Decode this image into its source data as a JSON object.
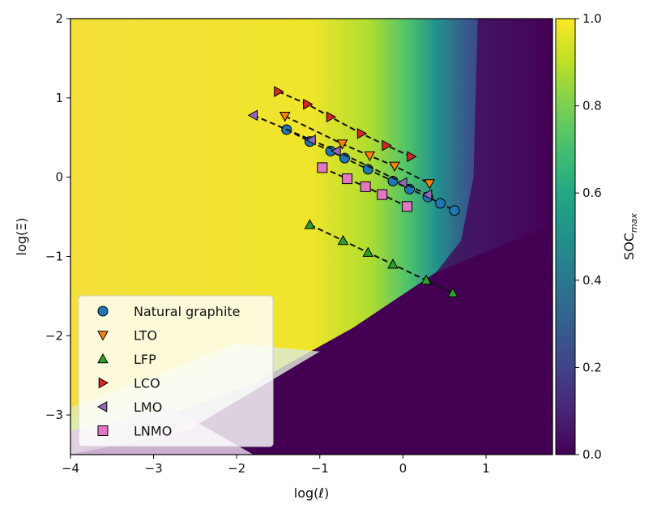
{
  "chart_data": {
    "type": "scatter",
    "background": "heatmap",
    "xlabel": "log(ℓ)",
    "ylabel": "log(Ξ)",
    "xlim": [
      -4,
      1.8
    ],
    "ylim": [
      -3.5,
      2
    ],
    "x_ticks": [
      -4,
      -3,
      -2,
      -1,
      0,
      1
    ],
    "y_ticks": [
      -3,
      -2,
      -1,
      0,
      1,
      2
    ],
    "x_tick_labels": [
      "−4",
      "−3",
      "−2",
      "−1",
      "0",
      "1"
    ],
    "y_tick_labels": [
      "−3",
      "−2",
      "−1",
      "0",
      "1",
      "2"
    ],
    "colorbar": {
      "label_main": "SOC",
      "label_sub": "max",
      "range": [
        0,
        1
      ],
      "ticks": [
        0,
        0.2,
        0.4,
        0.6,
        0.8,
        1.0
      ],
      "tick_labels": [
        "0.0",
        "0.2",
        "0.4",
        "0.6",
        "0.8",
        "1.0"
      ],
      "colormap": "viridis"
    },
    "legend_position": "lower-left",
    "series": [
      {
        "name": "Natural graphite",
        "marker": "circle",
        "color": "#1f77b4",
        "x": [
          -1.4,
          -1.12,
          -0.87,
          -0.7,
          -0.42,
          -0.12,
          0.08,
          0.3,
          0.45,
          0.62
        ],
        "y": [
          0.6,
          0.45,
          0.33,
          0.24,
          0.1,
          -0.05,
          -0.15,
          -0.25,
          -0.33,
          -0.42
        ]
      },
      {
        "name": "LTO",
        "marker": "triangle-down",
        "color": "#ff7f0e",
        "x": [
          -1.42,
          -0.73,
          -0.4,
          -0.1,
          0.32
        ],
        "y": [
          0.77,
          0.42,
          0.27,
          0.14,
          -0.08
        ]
      },
      {
        "name": "LFP",
        "marker": "triangle-up",
        "color": "#2ca02c",
        "x": [
          -1.12,
          -0.72,
          -0.42,
          -0.12,
          0.28,
          0.6
        ],
        "y": [
          -0.6,
          -0.8,
          -0.95,
          -1.1,
          -1.3,
          -1.46
        ]
      },
      {
        "name": "LCO",
        "marker": "triangle-right",
        "color": "#d62728",
        "x": [
          -1.5,
          -1.15,
          -0.87,
          -0.5,
          -0.2,
          0.1
        ],
        "y": [
          1.08,
          0.92,
          0.76,
          0.55,
          0.4,
          0.26
        ]
      },
      {
        "name": "LMO",
        "marker": "triangle-left",
        "color": "#9467bd",
        "x": [
          -1.8,
          -1.1,
          -0.8,
          0.0,
          0.3
        ],
        "y": [
          0.78,
          0.47,
          0.33,
          -0.07,
          -0.22
        ]
      },
      {
        "name": "LNMO",
        "marker": "square",
        "color": "#e377c2",
        "x": [
          -0.97,
          -0.67,
          -0.45,
          -0.25,
          0.05
        ],
        "y": [
          0.12,
          -0.02,
          -0.12,
          -0.22,
          -0.37
        ]
      }
    ]
  }
}
